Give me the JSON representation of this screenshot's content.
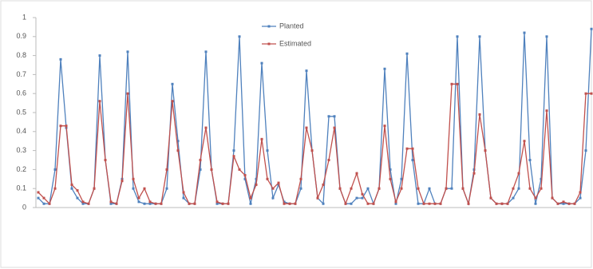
{
  "chart_data": {
    "type": "line",
    "categories": [
      null,
      null,
      null,
      null,
      null,
      null,
      null,
      null,
      null,
      null,
      null,
      null,
      null,
      null,
      null,
      null,
      null,
      null,
      null,
      null,
      null,
      null,
      null,
      null,
      null,
      null,
      null,
      null,
      null,
      null,
      null,
      null,
      null,
      null,
      null,
      null,
      null,
      null,
      null,
      null,
      null,
      null,
      null,
      null,
      null,
      null,
      null,
      null,
      null,
      null,
      null,
      null,
      null,
      null,
      null,
      null,
      null,
      null,
      null,
      null,
      null,
      null,
      null,
      null,
      null,
      null,
      null,
      null,
      null,
      null,
      null,
      null,
      null,
      null,
      null,
      null,
      null,
      null,
      null,
      null,
      null,
      null,
      null,
      null,
      null,
      null,
      null,
      null,
      null,
      null,
      null,
      null,
      null,
      null,
      null,
      null,
      null,
      null,
      null,
      null
    ],
    "series": [
      {
        "name": "Planted",
        "color": "#4f81bd",
        "values": [
          0.05,
          0.02,
          0.02,
          0.2,
          0.78,
          0.42,
          0.1,
          0.05,
          0.02,
          0.02,
          0.1,
          0.8,
          0.25,
          0.02,
          0.02,
          0.15,
          0.82,
          0.1,
          0.03,
          0.02,
          0.02,
          0.02,
          0.02,
          0.1,
          0.65,
          0.35,
          0.05,
          0.02,
          0.02,
          0.2,
          0.82,
          0.2,
          0.02,
          0.02,
          0.02,
          0.3,
          0.9,
          0.15,
          0.02,
          0.15,
          0.76,
          0.3,
          0.05,
          0.12,
          0.03,
          0.02,
          0.02,
          0.1,
          0.72,
          0.3,
          0.05,
          0.02,
          0.48,
          0.48,
          0.1,
          0.02,
          0.02,
          0.05,
          0.05,
          0.1,
          0.02,
          0.1,
          0.73,
          0.2,
          0.02,
          0.15,
          0.81,
          0.25,
          0.02,
          0.02,
          0.1,
          0.02,
          0.02,
          0.1,
          0.1,
          0.9,
          0.1,
          0.02,
          0.2,
          0.9,
          0.3,
          0.05,
          0.02,
          0.02,
          0.02,
          0.05,
          0.1,
          0.92,
          0.25,
          0.02,
          0.15,
          0.9,
          0.05,
          0.02,
          0.02,
          0.02,
          0.02,
          0.05,
          0.3,
          0.94
        ]
      },
      {
        "name": "Estimated",
        "color": "#c0504d",
        "values": [
          0.08,
          0.05,
          0.02,
          0.1,
          0.43,
          0.43,
          0.12,
          0.09,
          0.03,
          0.02,
          0.1,
          0.56,
          0.25,
          0.03,
          0.02,
          0.14,
          0.6,
          0.15,
          0.05,
          0.1,
          0.03,
          0.02,
          0.02,
          0.2,
          0.56,
          0.3,
          0.08,
          0.02,
          0.02,
          0.25,
          0.42,
          0.2,
          0.03,
          0.02,
          0.02,
          0.27,
          0.2,
          0.17,
          0.05,
          0.12,
          0.36,
          0.15,
          0.1,
          0.13,
          0.02,
          0.02,
          0.02,
          0.15,
          0.42,
          0.3,
          0.05,
          0.12,
          0.25,
          0.42,
          0.1,
          0.02,
          0.1,
          0.18,
          0.07,
          0.02,
          0.02,
          0.1,
          0.43,
          0.15,
          0.03,
          0.1,
          0.31,
          0.31,
          0.1,
          0.02,
          0.02,
          0.02,
          0.02,
          0.1,
          0.65,
          0.65,
          0.1,
          0.02,
          0.18,
          0.49,
          0.3,
          0.05,
          0.02,
          0.02,
          0.02,
          0.1,
          0.18,
          0.35,
          0.1,
          0.05,
          0.1,
          0.51,
          0.05,
          0.02,
          0.03,
          0.02,
          0.02,
          0.08,
          0.6,
          0.6
        ]
      }
    ],
    "ylim": [
      0,
      1
    ],
    "yticks": [
      0,
      0.1,
      0.2,
      0.3,
      0.4,
      0.5,
      0.6,
      0.7,
      0.8,
      0.9,
      1
    ],
    "legend": "top"
  }
}
